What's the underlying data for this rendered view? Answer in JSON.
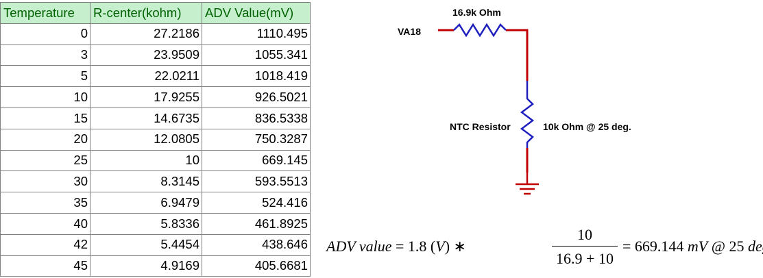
{
  "table": {
    "headers": [
      "Temperature",
      "R-center(kohm)",
      "ADV Value(mV)"
    ],
    "rows": [
      [
        "0",
        "27.2186",
        "1110.495"
      ],
      [
        "3",
        "23.9509",
        "1055.341"
      ],
      [
        "5",
        "22.0211",
        "1018.419"
      ],
      [
        "10",
        "17.9255",
        "926.5021"
      ],
      [
        "15",
        "14.6735",
        "836.5338"
      ],
      [
        "20",
        "12.0805",
        "750.3287"
      ],
      [
        "25",
        "10",
        "669.145"
      ],
      [
        "30",
        "8.3145",
        "593.5513"
      ],
      [
        "35",
        "6.9479",
        "524.416"
      ],
      [
        "40",
        "5.8336",
        "461.8925"
      ],
      [
        "42",
        "5.4454",
        "438.646"
      ],
      [
        "45",
        "4.9169",
        "405.6681"
      ]
    ],
    "header_bg": "#c6efce",
    "header_color": "#006100"
  },
  "circuit": {
    "source_label": "VA18",
    "top_resistor_label": "16.9k Ohm",
    "ntc_label": "NTC Resistor",
    "ntc_value_label": "10k Ohm @ 25 deg.",
    "wire_color": "#c00000",
    "resistor_color": "#1f1fbf"
  },
  "formula": {
    "lhs_italic": "ADV value",
    "lhs_rest": " = 1.8 (",
    "lhs_unit": "V",
    "lhs_close": ") ∗",
    "numerator": "10",
    "denominator": "16.9 + 10",
    "rhs_eq": "= 669.144 ",
    "rhs_italic": "mV",
    "rhs_tail": " @ 25 ",
    "rhs_tail_italic": "deg."
  }
}
